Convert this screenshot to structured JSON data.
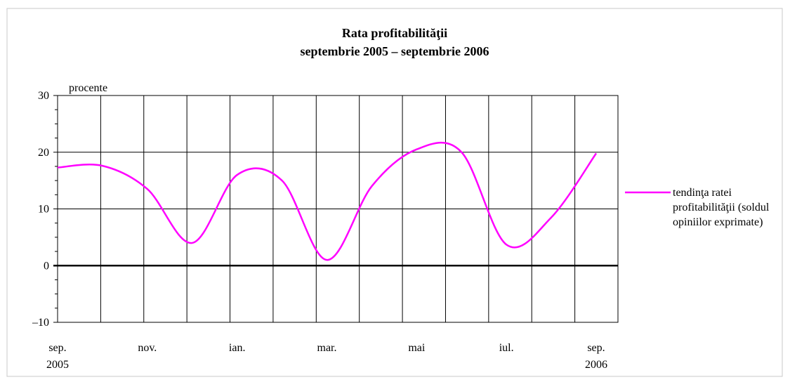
{
  "chart_data": {
    "type": "line",
    "title": "Rata profitabilităţii",
    "subtitle": "septembrie 2005 – septembrie 2006",
    "y_label": "procente",
    "categories": [
      "sep.\n2005",
      null,
      "nov.",
      null,
      "ian.",
      null,
      "mar.",
      null,
      "mai",
      null,
      "iul.",
      null,
      "sep.\n2006"
    ],
    "series": [
      {
        "name": "tendinţa ratei profitabilităţii (soldul opiniilor exprimate)",
        "color": "#ff00ff",
        "values": [
          17.3,
          17.6,
          13.5,
          4,
          16,
          15,
          1,
          14,
          20.5,
          20,
          3.7,
          8.5,
          19.8
        ]
      }
    ],
    "ylim": [
      -10,
      30
    ],
    "yticks": [
      {
        "value": -10,
        "label": "–10"
      },
      0,
      10,
      20,
      30
    ],
    "grid": true,
    "legend": "right"
  }
}
